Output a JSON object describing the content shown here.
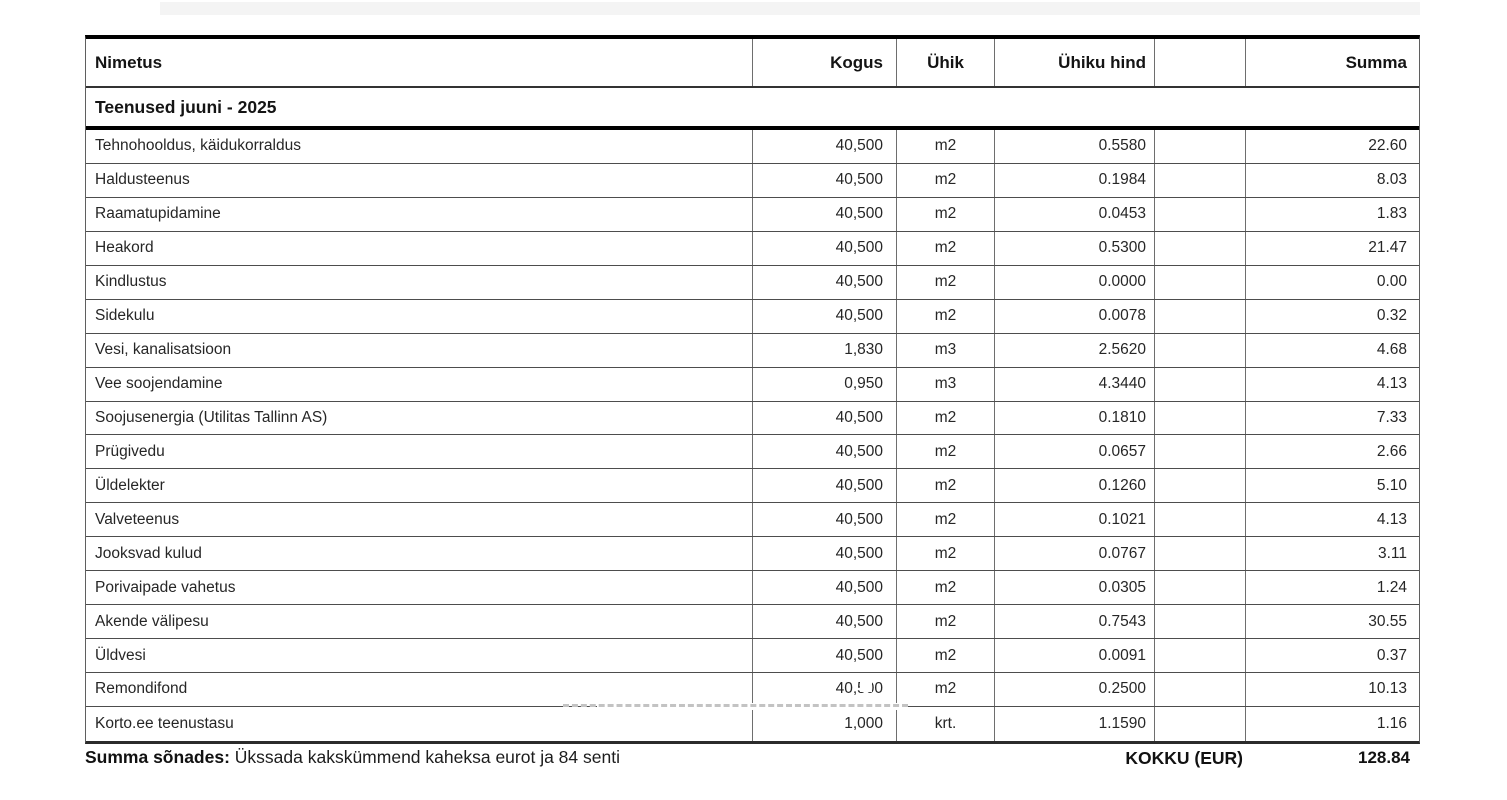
{
  "colors": {
    "table_border": "#000000",
    "grid_line": "#6e6e6e",
    "text": "#262626",
    "background": "#ffffff"
  },
  "table": {
    "columns": [
      {
        "label": "Nimetus"
      },
      {
        "label": "Kogus"
      },
      {
        "label": "Ühik"
      },
      {
        "label": "Ühiku hind"
      },
      {
        "label": ""
      },
      {
        "label": "Summa"
      }
    ],
    "section_title": "Teenused juuni - 2025",
    "rows": [
      {
        "name": "Tehnohooldus, käidukorraldus",
        "qty": "40,500",
        "unit": "m2",
        "price": "0.5580",
        "blank": "",
        "sum": "22.60"
      },
      {
        "name": "Haldusteenus",
        "qty": "40,500",
        "unit": "m2",
        "price": "0.1984",
        "blank": "",
        "sum": "8.03"
      },
      {
        "name": "Raamatupidamine",
        "qty": "40,500",
        "unit": "m2",
        "price": "0.0453",
        "blank": "",
        "sum": "1.83"
      },
      {
        "name": "Heakord",
        "qty": "40,500",
        "unit": "m2",
        "price": "0.5300",
        "blank": "",
        "sum": "21.47"
      },
      {
        "name": "Kindlustus",
        "qty": "40,500",
        "unit": "m2",
        "price": "0.0000",
        "blank": "",
        "sum": "0.00"
      },
      {
        "name": "Sidekulu",
        "qty": "40,500",
        "unit": "m2",
        "price": "0.0078",
        "blank": "",
        "sum": "0.32"
      },
      {
        "name": "Vesi, kanalisatsioon",
        "qty": "1,830",
        "unit": "m3",
        "price": "2.5620",
        "blank": "",
        "sum": "4.68"
      },
      {
        "name": "Vee soojendamine",
        "qty": "0,950",
        "unit": "m3",
        "price": "4.3440",
        "blank": "",
        "sum": "4.13"
      },
      {
        "name": "Soojusenergia (Utilitas Tallinn AS)",
        "qty": "40,500",
        "unit": "m2",
        "price": "0.1810",
        "blank": "",
        "sum": "7.33"
      },
      {
        "name": "Prügivedu",
        "qty": "40,500",
        "unit": "m2",
        "price": "0.0657",
        "blank": "",
        "sum": "2.66"
      },
      {
        "name": "Üldelekter",
        "qty": "40,500",
        "unit": "m2",
        "price": "0.1260",
        "blank": "",
        "sum": "5.10"
      },
      {
        "name": "Valveteenus",
        "qty": "40,500",
        "unit": "m2",
        "price": "0.1021",
        "blank": "",
        "sum": "4.13"
      },
      {
        "name": "Jooksvad kulud",
        "qty": "40,500",
        "unit": "m2",
        "price": "0.0767",
        "blank": "",
        "sum": "3.11"
      },
      {
        "name": "Porivaipade vahetus",
        "qty": "40,500",
        "unit": "m2",
        "price": "0.0305",
        "blank": "",
        "sum": "1.24"
      },
      {
        "name": "Akende välipesu",
        "qty": "40,500",
        "unit": "m2",
        "price": "0.7543",
        "blank": "",
        "sum": "30.55"
      },
      {
        "name": "Üldvesi",
        "qty": "40,500",
        "unit": "m2",
        "price": "0.0091",
        "blank": "",
        "sum": "0.37"
      },
      {
        "name": "Remondifond",
        "qty": "40,500",
        "unit": "m2",
        "price": "0.2500",
        "blank": "",
        "sum": "10.13"
      },
      {
        "name": "Korto.ee teenustasu",
        "qty": "1,000",
        "unit": "krt.",
        "price": "1.1590",
        "blank": "",
        "sum": "1.16"
      }
    ]
  },
  "footer": {
    "words_label": "Summa sõnades:",
    "words_text": " Ükssada kakskümmend kaheksa eurot ja 84 senti",
    "total_label": "KOKKU (EUR)",
    "total_value": "128.84"
  }
}
